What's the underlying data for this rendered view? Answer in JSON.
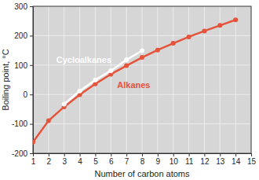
{
  "chart_data": {
    "type": "line",
    "x_label": "Number of carbon atoms",
    "y_label": "Boiling point, °C",
    "xlim": [
      1,
      15
    ],
    "xticks": [
      1,
      2,
      3,
      4,
      5,
      6,
      7,
      8,
      9,
      10,
      11,
      12,
      13,
      14,
      15
    ],
    "ylim": [
      -200,
      300
    ],
    "yticks": [
      -200,
      -100,
      0,
      100,
      200,
      300
    ],
    "grid": true,
    "series": [
      {
        "name": "Alkanes",
        "color": "#e4533a",
        "marker": "circle",
        "x": [
          1,
          2,
          3,
          4,
          5,
          6,
          7,
          8,
          9,
          10,
          11,
          12,
          13,
          14
        ],
        "values": [
          -162,
          -89,
          -42,
          -1,
          36,
          69,
          98,
          126,
          151,
          174,
          196,
          216,
          235,
          254
        ]
      },
      {
        "name": "Cycloalkanes",
        "color": "#ffffff",
        "marker": "circle",
        "x": [
          3,
          4,
          5,
          6,
          7,
          8
        ],
        "values": [
          -33,
          12,
          49,
          81,
          118,
          149
        ]
      }
    ]
  }
}
